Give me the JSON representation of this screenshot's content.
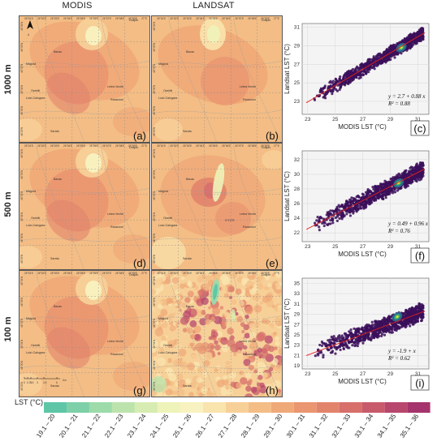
{
  "columns": {
    "modis": "MODIS",
    "landsat": "LANDSAT"
  },
  "rows": [
    "1000 m",
    "500 m",
    "100 m"
  ],
  "panel_letters": [
    "(a)",
    "(b)",
    "(c)",
    "(d)",
    "(e)",
    "(f)",
    "(g)",
    "(h)",
    "(i)"
  ],
  "map": {
    "lon_ticks": [
      "26°51'E",
      "26°52'E",
      "26°53'E",
      "26°54'E",
      "26°55'E",
      "26°56'E",
      "26°57'E",
      "26°58'E",
      "26°59'E",
      "27°E"
    ],
    "lat_ticks": [
      "46°34'N",
      "46°33'N",
      "46°32'N",
      "46°31'N",
      "46°30'N",
      "46°29'N"
    ],
    "places": [
      "Bacau",
      "Magura",
      "Letea Veche",
      "Luizi-Calugara",
      "Osebiti",
      "Racaciuni",
      "Sarata",
      "Dospin"
    ],
    "north_arrow": "A",
    "scalebar": {
      "ticks": [
        "0",
        "0.75",
        "1.5",
        "3",
        "4.5",
        "6"
      ],
      "unit": "Km"
    },
    "inset_label": "0°1'0\"E"
  },
  "legend": {
    "title": "LST (°C)",
    "classes": [
      "19.1 – 20",
      "20.1 – 21",
      "21.1 – 22",
      "22.1 – 23",
      "23.1 – 24",
      "24.1 – 25",
      "25.1 – 26",
      "26.1 – 27",
      "27.1 – 28",
      "28.1 – 29",
      "29.1 – 30",
      "30.1 – 31",
      "31.1 – 32",
      "32.1 – 33",
      "33.1 – 34",
      "34.1 – 35",
      "35.1 – 36"
    ],
    "colors": [
      "#5ec6a6",
      "#7dd0a8",
      "#9ddbab",
      "#bde3ad",
      "#d7ecb2",
      "#eef3b9",
      "#f8f2c0",
      "#f9e4ad",
      "#f7d098",
      "#f3bd85",
      "#efa978",
      "#ea9670",
      "#e2846c",
      "#d76f6b",
      "#c85b6b",
      "#b8476d",
      "#a5346c"
    ]
  },
  "chart_data": [
    {
      "type": "scatter",
      "panel": "(c)",
      "xlabel": "MODIS LST (°C)",
      "ylabel": "Landsat LST (°C)",
      "xticks": [
        23,
        25,
        27,
        29,
        31
      ],
      "yticks": [
        23,
        25,
        27,
        29,
        31
      ],
      "xlim": [
        22.6,
        31.8
      ],
      "ylim": [
        21.6,
        31.4
      ],
      "equation": "y = 2.7 + 0.88 x",
      "r2": "R² = 0.88",
      "fit": {
        "intercept": 2.7,
        "slope": 0.88
      },
      "density_center": [
        29.8,
        28.8
      ]
    },
    {
      "type": "scatter",
      "panel": "(f)",
      "xlabel": "MODIS LST (°C)",
      "ylabel": "Landsat LST (°C)",
      "xticks": [
        23,
        25,
        27,
        29,
        31
      ],
      "yticks": [
        22,
        24,
        26,
        28,
        30,
        32
      ],
      "xlim": [
        22.6,
        31.8
      ],
      "ylim": [
        20.8,
        33.2
      ],
      "equation": "y = 0.49 + 0.96 x",
      "r2": "R² = 0.76",
      "fit": {
        "intercept": 0.49,
        "slope": 0.96
      },
      "density_center": [
        29.6,
        28.8
      ]
    },
    {
      "type": "scatter",
      "panel": "(i)",
      "xlabel": "MODIS LST (°C)",
      "ylabel": "Landsat LST (°C)",
      "xticks": [
        23,
        25,
        27,
        29,
        31
      ],
      "yticks": [
        19,
        21,
        23,
        25,
        27,
        29,
        31,
        33,
        35
      ],
      "xlim": [
        22.6,
        31.8
      ],
      "ylim": [
        18.4,
        36
      ],
      "equation": "y = -1.9 + x",
      "r2": "R² = 0.62",
      "fit": {
        "intercept": -1.9,
        "slope": 1.0
      },
      "density_center": [
        29.5,
        28.5
      ]
    }
  ]
}
